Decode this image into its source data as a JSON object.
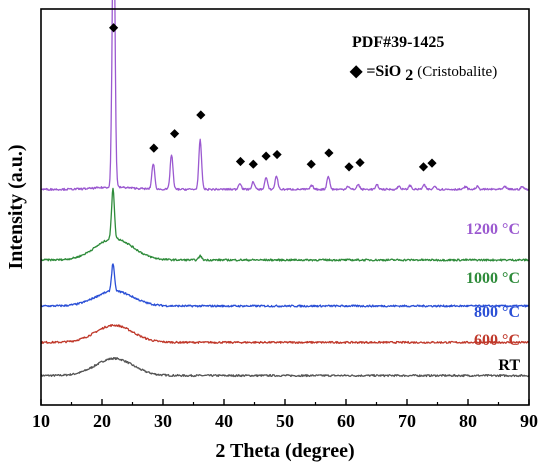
{
  "chart_data": {
    "type": "line",
    "xlabel": "2 Theta (degree)",
    "ylabel": "Intensity (a.u.)",
    "xlim": [
      10,
      90
    ],
    "x_ticks": [
      "10",
      "20",
      "30",
      "40",
      "50",
      "60",
      "70",
      "80",
      "90"
    ],
    "legend": {
      "reference": "PDF#39-1425",
      "marker": "◆",
      "assignment_main": "=SiO",
      "assignment_sub": "2",
      "assignment_paren": "(Cristobalite)"
    },
    "series": [
      {
        "name": "RT",
        "color": "#555555",
        "baseline": 0.0,
        "hump": 0.32,
        "peaks": []
      },
      {
        "name": "600 °C",
        "color": "#c0392b",
        "baseline": 0.62,
        "hump": 0.32,
        "peaks": []
      },
      {
        "name": "800 °C",
        "color": "#2a4fd6",
        "baseline": 1.3,
        "hump": 0.28,
        "peaks": [
          {
            "x": 21.8,
            "h": 0.52
          }
        ]
      },
      {
        "name": "1000 °C",
        "color": "#2e8b3a",
        "baseline": 2.16,
        "hump": 0.4,
        "peaks": [
          {
            "x": 21.8,
            "h": 0.95
          },
          {
            "x": 36.1,
            "h": 0.08
          }
        ]
      },
      {
        "name": "1200 °C",
        "color": "#9b59d0",
        "baseline": 3.48,
        "hump": 0.04,
        "peaks": [
          {
            "x": 21.9,
            "h": 5.45
          },
          {
            "x": 28.4,
            "h": 0.48
          },
          {
            "x": 31.4,
            "h": 0.65
          },
          {
            "x": 36.1,
            "h": 0.92
          },
          {
            "x": 42.6,
            "h": 0.12
          },
          {
            "x": 44.8,
            "h": 0.14
          },
          {
            "x": 46.9,
            "h": 0.22
          },
          {
            "x": 48.6,
            "h": 0.25
          },
          {
            "x": 54.4,
            "h": 0.07
          },
          {
            "x": 57.1,
            "h": 0.25
          },
          {
            "x": 60.3,
            "h": 0.06
          },
          {
            "x": 62.0,
            "h": 0.09
          },
          {
            "x": 65.1,
            "h": 0.08
          },
          {
            "x": 68.7,
            "h": 0.06
          },
          {
            "x": 70.5,
            "h": 0.07
          },
          {
            "x": 72.8,
            "h": 0.08
          },
          {
            "x": 74.6,
            "h": 0.06
          },
          {
            "x": 79.6,
            "h": 0.05
          },
          {
            "x": 81.5,
            "h": 0.05
          },
          {
            "x": 86.1,
            "h": 0.05
          },
          {
            "x": 88.9,
            "h": 0.05
          }
        ]
      }
    ],
    "cristobalite_markers": [
      {
        "x": 21.9,
        "level": 6.5
      },
      {
        "x": 28.5,
        "level": 4.25
      },
      {
        "x": 31.9,
        "level": 4.52
      },
      {
        "x": 36.2,
        "level": 4.87
      },
      {
        "x": 42.7,
        "level": 4.0
      },
      {
        "x": 44.8,
        "level": 3.95
      },
      {
        "x": 46.9,
        "level": 4.1
      },
      {
        "x": 48.7,
        "level": 4.13
      },
      {
        "x": 54.3,
        "level": 3.95
      },
      {
        "x": 57.2,
        "level": 4.16
      },
      {
        "x": 60.5,
        "level": 3.9
      },
      {
        "x": 62.3,
        "level": 3.98
      },
      {
        "x": 72.7,
        "level": 3.9
      },
      {
        "x": 74.1,
        "level": 3.97
      }
    ]
  }
}
